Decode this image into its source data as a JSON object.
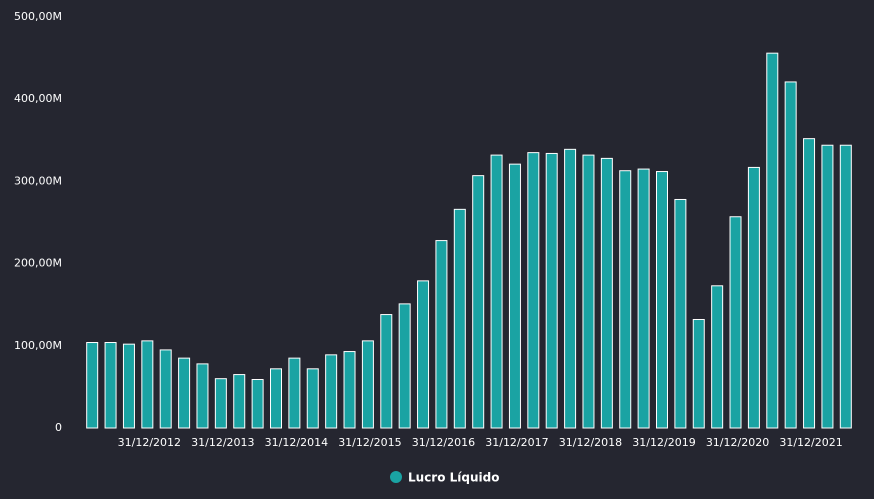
{
  "chart_data": {
    "type": "bar",
    "categories": [
      null,
      null,
      null,
      "31/12/2012",
      null,
      null,
      null,
      "31/12/2013",
      null,
      null,
      null,
      "31/12/2014",
      null,
      null,
      null,
      "31/12/2015",
      null,
      null,
      null,
      "31/12/2016",
      null,
      null,
      null,
      "31/12/2017",
      null,
      null,
      null,
      "31/12/2018",
      null,
      null,
      null,
      "31/12/2019",
      null,
      null,
      null,
      "31/12/2020",
      null,
      null,
      null,
      "31/12/2021",
      null,
      null
    ],
    "series": [
      {
        "name": "Lucro Líquido",
        "color": "#1aa3a3",
        "values": [
          104,
          104,
          102,
          106,
          95,
          85,
          78,
          60,
          65,
          59,
          72,
          85,
          72,
          89,
          93,
          106,
          138,
          151,
          179,
          228,
          266,
          307,
          332,
          321,
          335,
          334,
          339,
          332,
          328,
          313,
          315,
          312,
          278,
          132,
          173,
          257,
          317,
          456,
          421,
          352,
          344,
          344
        ]
      }
    ],
    "ylim": [
      0,
      500000000
    ],
    "yticks": [
      0,
      {
        "value": 100000000,
        "label": "100,00M"
      },
      {
        "value": 200000000,
        "label": "200,00M"
      },
      {
        "value": 300000000,
        "label": "300,00M"
      },
      {
        "value": 400000000,
        "label": "400,00M"
      },
      {
        "value": 500000000,
        "label": "500,00M"
      }
    ],
    "value_scale": 1000000,
    "legend": "bottom"
  }
}
